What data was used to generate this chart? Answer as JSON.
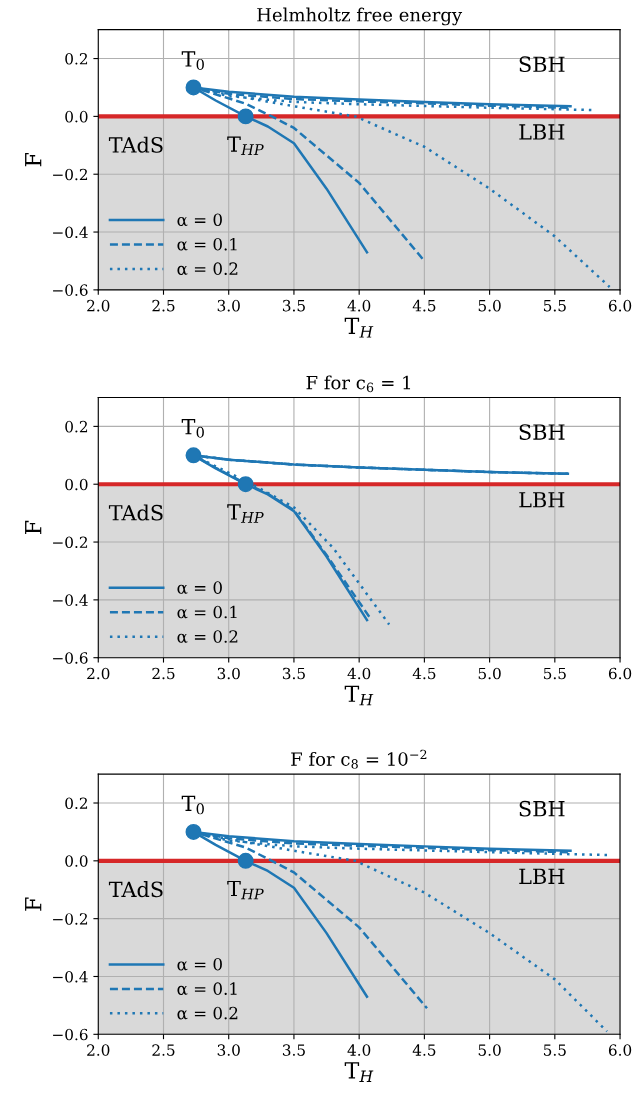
{
  "chart_data": [
    {
      "type": "line",
      "title": "Helmholtz free energy",
      "xlabel": "T$_{H}$",
      "ylabel": "F",
      "xlim": [
        2.0,
        6.0
      ],
      "ylim": [
        -0.6,
        0.3
      ],
      "xticks": [
        {
          "value": 2.0,
          "label": "2.0"
        },
        {
          "value": 2.5,
          "label": "2.5"
        },
        {
          "value": 3.0,
          "label": "3.0"
        },
        {
          "value": 3.5,
          "label": "3.5"
        },
        {
          "value": 4.0,
          "label": "4.0"
        },
        {
          "value": 4.5,
          "label": "4.5"
        },
        {
          "value": 5.0,
          "label": "5.0"
        },
        {
          "value": 5.5,
          "label": "5.5"
        },
        {
          "value": 6.0,
          "label": "6.0"
        }
      ],
      "yticks": [
        {
          "value": -0.6,
          "label": "−0.6"
        },
        {
          "value": -0.4,
          "label": "−0.4"
        },
        {
          "value": -0.2,
          "label": "−0.2"
        },
        {
          "value": 0.0,
          "label": "0.0"
        },
        {
          "value": 0.2,
          "label": "0.2"
        }
      ],
      "grid": true,
      "legend": "bottom left",
      "series": [
        {
          "name": "α = 0",
          "color": "#1f77b4",
          "line_style": "solid",
          "x": [
            5.62,
            5.0,
            4.5,
            4.0,
            3.5,
            3.0,
            2.73,
            2.9,
            3.13,
            3.3,
            3.5,
            3.75,
            4.06
          ],
          "values": [
            0.035,
            0.042,
            0.05,
            0.058,
            0.068,
            0.085,
            0.1,
            0.055,
            0.0,
            -0.035,
            -0.093,
            -0.25,
            -0.47
          ]
        },
        {
          "name": "α = 0.1",
          "color": "#1f77b4",
          "line_style": "dashed",
          "x": [
            5.6,
            5.0,
            4.5,
            4.0,
            3.5,
            3.0,
            2.73,
            3.13,
            3.33,
            3.5,
            4.0,
            4.5
          ],
          "values": [
            0.03,
            0.037,
            0.045,
            0.052,
            0.06,
            0.078,
            0.1,
            0.044,
            0.0,
            -0.04,
            -0.23,
            -0.5
          ]
        },
        {
          "name": "α = 0.2",
          "color": "#1f77b4",
          "line_style": "dotted",
          "x": [
            5.78,
            5.0,
            4.5,
            4.0,
            3.5,
            3.0,
            2.73,
            3.0,
            3.5,
            3.97,
            4.5,
            5.0,
            5.5,
            5.92
          ],
          "values": [
            0.022,
            0.03,
            0.036,
            0.042,
            0.05,
            0.07,
            0.1,
            0.075,
            0.035,
            0.0,
            -0.105,
            -0.25,
            -0.415,
            -0.59
          ]
        },
        {
          "type": "scatter",
          "color": "#1f77b4",
          "marker": "circle",
          "x": [
            2.73,
            3.13
          ],
          "values": [
            0.1,
            0.0
          ]
        }
      ],
      "ref_lines": [
        {
          "axis": "y",
          "value": 0.0,
          "color": "#d62728",
          "line_style": "solid"
        }
      ],
      "bands": [
        {
          "axis": "y",
          "from": -0.6,
          "to": 0.0,
          "color": "#d9d9d9"
        }
      ],
      "annotations": [
        "T$_{0}$",
        "T$_{HP}$",
        "SBH",
        "LBH",
        "TAdS"
      ]
    },
    {
      "type": "line",
      "title": "F for c$_{6}$ = 1",
      "xlabel": "T$_{H}$",
      "ylabel": "F",
      "xlim": [
        2.0,
        6.0
      ],
      "ylim": [
        -0.6,
        0.3
      ],
      "xticks": [
        {
          "value": 2.0,
          "label": "2.0"
        },
        {
          "value": 2.5,
          "label": "2.5"
        },
        {
          "value": 3.0,
          "label": "3.0"
        },
        {
          "value": 3.5,
          "label": "3.5"
        },
        {
          "value": 4.0,
          "label": "4.0"
        },
        {
          "value": 4.5,
          "label": "4.5"
        },
        {
          "value": 5.0,
          "label": "5.0"
        },
        {
          "value": 5.5,
          "label": "5.5"
        },
        {
          "value": 6.0,
          "label": "6.0"
        }
      ],
      "yticks": [
        {
          "value": -0.6,
          "label": "−0.6"
        },
        {
          "value": -0.4,
          "label": "−0.4"
        },
        {
          "value": -0.2,
          "label": "−0.2"
        },
        {
          "value": 0.0,
          "label": "0.0"
        },
        {
          "value": 0.2,
          "label": "0.2"
        }
      ],
      "grid": true,
      "legend": "bottom left",
      "series": [
        {
          "name": "α = 0",
          "color": "#1f77b4",
          "line_style": "solid",
          "x": [
            5.6,
            5.0,
            4.5,
            4.0,
            3.5,
            3.0,
            2.73,
            2.9,
            3.13,
            3.3,
            3.5,
            3.75,
            4.06
          ],
          "values": [
            0.036,
            0.042,
            0.05,
            0.058,
            0.068,
            0.085,
            0.1,
            0.055,
            0.0,
            -0.035,
            -0.093,
            -0.25,
            -0.47
          ]
        },
        {
          "name": "α = 0.1",
          "color": "#1f77b4",
          "line_style": "dashed",
          "x": [
            5.6,
            5.0,
            4.5,
            4.0,
            3.5,
            3.0,
            2.73,
            2.9,
            3.14,
            3.3,
            3.5,
            3.75,
            4.08
          ],
          "values": [
            0.036,
            0.042,
            0.05,
            0.058,
            0.068,
            0.085,
            0.1,
            0.057,
            0.0,
            -0.033,
            -0.09,
            -0.245,
            -0.46
          ]
        },
        {
          "name": "α = 0.2",
          "color": "#1f77b4",
          "line_style": "dotted",
          "x": [
            5.6,
            5.0,
            4.5,
            4.0,
            3.5,
            3.0,
            2.73,
            2.9,
            3.18,
            3.5,
            3.8,
            4.23
          ],
          "values": [
            0.036,
            0.042,
            0.05,
            0.058,
            0.068,
            0.085,
            0.1,
            0.062,
            0.0,
            -0.08,
            -0.22,
            -0.485
          ]
        },
        {
          "type": "scatter",
          "color": "#1f77b4",
          "marker": "circle",
          "x": [
            2.73,
            3.13
          ],
          "values": [
            0.1,
            0.0
          ]
        }
      ],
      "ref_lines": [
        {
          "axis": "y",
          "value": 0.0,
          "color": "#d62728",
          "line_style": "solid"
        }
      ],
      "bands": [
        {
          "axis": "y",
          "from": -0.6,
          "to": 0.0,
          "color": "#d9d9d9"
        }
      ],
      "annotations": [
        "T$_{0}$",
        "T$_{HP}$",
        "SBH",
        "LBH",
        "TAdS"
      ]
    },
    {
      "type": "line",
      "title": "F for c$_{8}$ = 10$^{−2}$",
      "xlabel": "T$_{H}$",
      "ylabel": "F",
      "xlim": [
        2.0,
        6.0
      ],
      "ylim": [
        -0.6,
        0.3
      ],
      "xticks": [
        {
          "value": 2.0,
          "label": "2.0"
        },
        {
          "value": 2.5,
          "label": "2.5"
        },
        {
          "value": 3.0,
          "label": "3.0"
        },
        {
          "value": 3.5,
          "label": "3.5"
        },
        {
          "value": 4.0,
          "label": "4.0"
        },
        {
          "value": 4.5,
          "label": "4.5"
        },
        {
          "value": 5.0,
          "label": "5.0"
        },
        {
          "value": 5.5,
          "label": "5.5"
        },
        {
          "value": 6.0,
          "label": "6.0"
        }
      ],
      "yticks": [
        {
          "value": -0.6,
          "label": "−0.6"
        },
        {
          "value": -0.4,
          "label": "−0.4"
        },
        {
          "value": -0.2,
          "label": "−0.2"
        },
        {
          "value": 0.0,
          "label": "0.0"
        },
        {
          "value": 0.2,
          "label": "0.2"
        }
      ],
      "grid": true,
      "legend": "bottom left",
      "series": [
        {
          "name": "α = 0",
          "color": "#1f77b4",
          "line_style": "solid",
          "x": [
            5.62,
            5.0,
            4.5,
            4.0,
            3.5,
            3.0,
            2.73,
            2.9,
            3.13,
            3.3,
            3.5,
            3.75,
            4.06
          ],
          "values": [
            0.035,
            0.042,
            0.05,
            0.058,
            0.068,
            0.085,
            0.1,
            0.055,
            0.0,
            -0.035,
            -0.093,
            -0.25,
            -0.47
          ]
        },
        {
          "name": "α = 0.1",
          "color": "#1f77b4",
          "line_style": "dashed",
          "x": [
            5.6,
            5.0,
            4.5,
            4.0,
            3.5,
            3.0,
            2.73,
            3.13,
            3.33,
            3.5,
            4.0,
            4.52
          ],
          "values": [
            0.03,
            0.037,
            0.045,
            0.052,
            0.06,
            0.078,
            0.1,
            0.046,
            0.0,
            -0.04,
            -0.23,
            -0.51
          ]
        },
        {
          "name": "α = 0.2",
          "color": "#1f77b4",
          "line_style": "dotted",
          "x": [
            5.9,
            5.0,
            4.5,
            4.0,
            3.5,
            3.0,
            2.73,
            3.0,
            3.5,
            3.97,
            4.5,
            5.0,
            5.5,
            5.9
          ],
          "values": [
            0.02,
            0.03,
            0.036,
            0.042,
            0.05,
            0.07,
            0.1,
            0.075,
            0.035,
            0.0,
            -0.11,
            -0.25,
            -0.41,
            -0.59
          ]
        },
        {
          "type": "scatter",
          "color": "#1f77b4",
          "marker": "circle",
          "x": [
            2.73,
            3.13
          ],
          "values": [
            0.1,
            0.0
          ]
        }
      ],
      "ref_lines": [
        {
          "axis": "y",
          "value": 0.0,
          "color": "#d62728",
          "line_style": "solid"
        }
      ],
      "bands": [
        {
          "axis": "y",
          "from": -0.6,
          "to": 0.0,
          "color": "#d9d9d9"
        }
      ],
      "annotations": [
        "T$_{0}$",
        "T$_{HP}$",
        "SBH",
        "LBH",
        "TAdS"
      ]
    }
  ]
}
